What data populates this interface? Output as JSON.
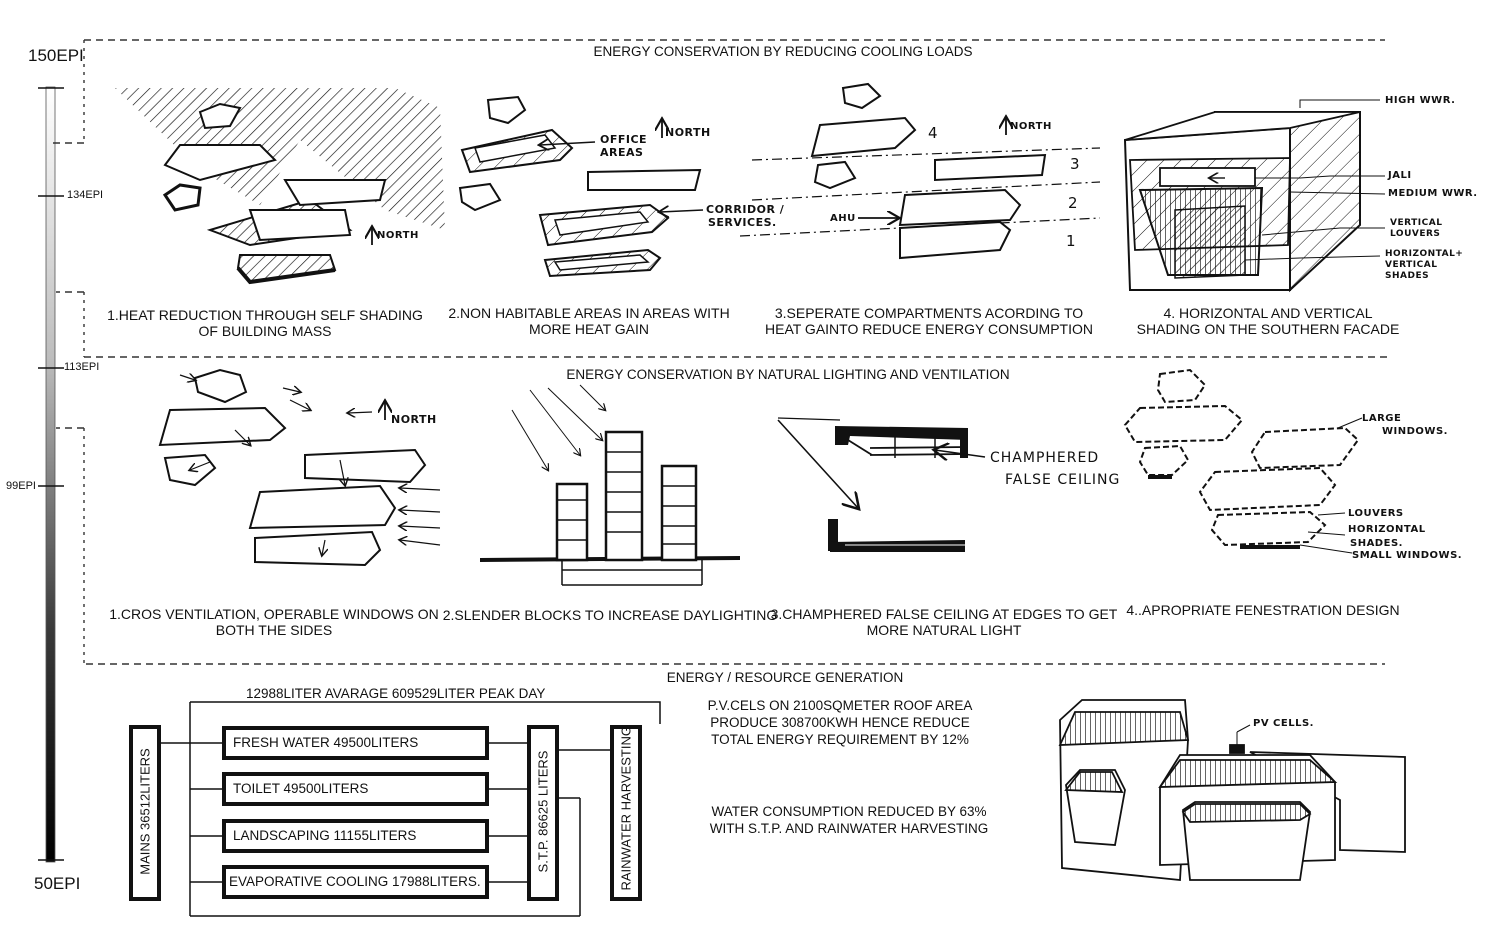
{
  "scale": {
    "top_label": "150EPI",
    "bottom_label": "50EPI",
    "ticks": [
      "134EPI",
      "113EPI",
      "99EPI"
    ]
  },
  "sections": {
    "cooling": {
      "heading": "ENERGY CONSERVATION  BY REDUCING COOLING LOADS",
      "captions": [
        [
          "1.HEAT REDUCTION THROUGH SELF SHADING",
          "OF BUILDING MASS"
        ],
        [
          "2.NON HABITABLE AREAS IN AREAS WITH",
          "MORE HEAT GAIN"
        ],
        [
          "3.SEPERATE COMPARTMENTS ACORDING TO",
          "HEAT GAINTO REDUCE ENERGY CONSUMPTION"
        ],
        [
          "4. HORIZONTAL AND VERTICAL",
          "SHADING ON THE SOUTHERN FACADE"
        ]
      ]
    },
    "lighting": {
      "heading": "ENERGY CONSERVATION  BY NATURAL LIGHTING AND VENTILATION",
      "captions": [
        [
          "1.CROS VENTILATION, OPERABLE WINDOWS ON",
          "BOTH THE SIDES"
        ],
        [
          "2.SLENDER BLOCKS TO INCREASE DAYLIGHTING"
        ],
        [
          "3.CHAMPHERED FALSE CEILING AT EDGES TO GET",
          "MORE NATURAL LIGHT"
        ],
        [
          "4..APROPRIATE FENESTRATION DESIGN"
        ]
      ]
    },
    "generation": {
      "heading": "ENERGY / RESOURCE GENERATION",
      "water_top": "12988LITER AVARAGE  609529LITER PEAK DAY",
      "mains": "MAINS 36512LITERS",
      "stp": "S.T.P.  86625 LITERS",
      "rainwater": "RAINWATER HARVESTING",
      "uses": [
        "FRESH WATER  49500LITERS",
        "TOILET   49500LITERS",
        "LANDSCAPING  11155LITERS",
        "EVAPORATIVE COOLING  17988LITERS."
      ],
      "pv_text": [
        "P.V.CELS ON 2100SQMETER ROOF AREA",
        "PRODUCE 308700KWH HENCE REDUCE",
        "TOTAL ENERGY REQUIREMENT BY 12%"
      ],
      "water_text": [
        "WATER CONSUMPTION REDUCED BY 63%",
        "WITH S.T.P. AND RAINWATER HARVESTING"
      ],
      "pv_label": "PV CELLS."
    }
  },
  "sketch_labels": {
    "north": "NORTH",
    "office_areas": [
      "OFFICE",
      "AREAS"
    ],
    "corridor": [
      "CORRIDOR /",
      "SERVICES."
    ],
    "ahu": "AHU",
    "zones": [
      "4",
      "3",
      "2",
      "1"
    ],
    "high_wwr": "HIGH WWR.",
    "jali": "JALI",
    "medium_wwr": "MEDIUM WWR.",
    "vertical_louvers": [
      "VERTICAL",
      "LOUVERS"
    ],
    "horiz_vert_shades": [
      "HORIZONTAL+",
      "VERTICAL",
      "SHADES"
    ],
    "champhered": [
      "CHAMPHERED",
      "FALSE CEILING"
    ],
    "large_windows": [
      "LARGE",
      "WINDOWS."
    ],
    "louvers": "LOUVERS",
    "horizontal_shades": [
      "HORIZONTAL",
      "SHADES."
    ],
    "small_windows": "SMALL WINDOWS."
  }
}
